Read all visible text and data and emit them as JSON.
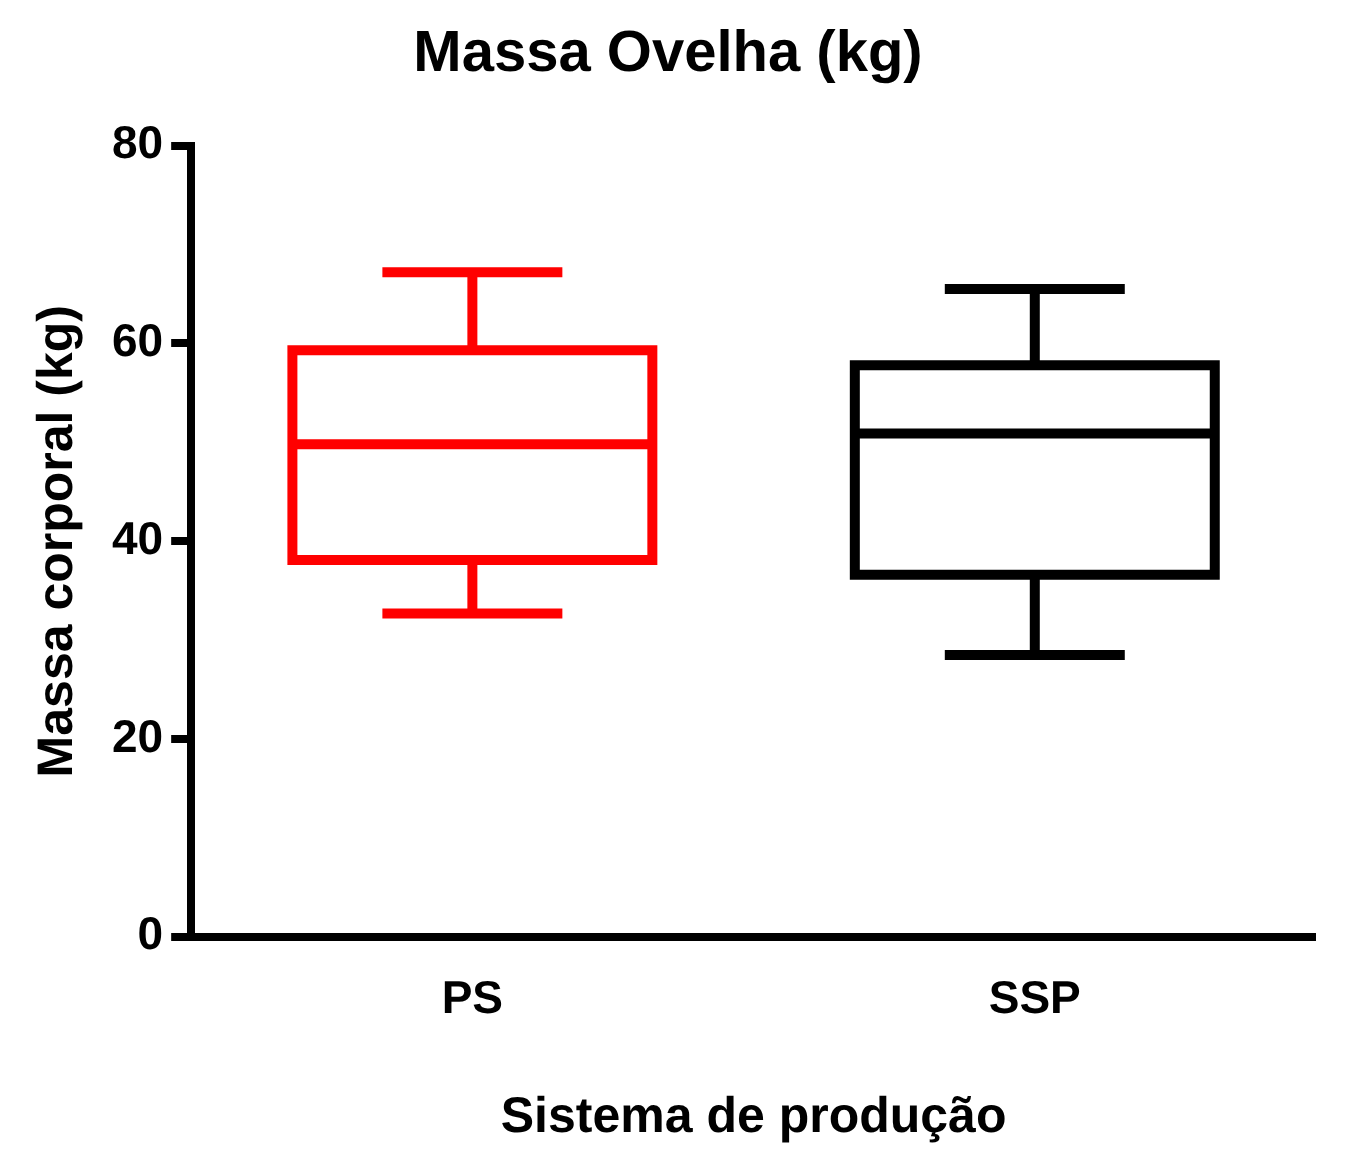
{
  "chart_data": {
    "type": "box",
    "title": "Massa Ovelha (kg)",
    "xlabel": "Sistema de produção",
    "ylabel": "Massa corporal (kg)",
    "categories": [
      "PS",
      "SSP"
    ],
    "colors": [
      "#ff0000",
      "#000000"
    ],
    "boxes": [
      {
        "low": 32.7,
        "q1": 38.1,
        "median": 49.8,
        "q3": 59.3,
        "high": 67.2
      },
      {
        "low": 28.5,
        "q1": 36.6,
        "median": 50.9,
        "q3": 57.8,
        "high": 65.5
      }
    ],
    "ylim": [
      0,
      80
    ],
    "yticks": [
      0,
      20,
      40,
      60,
      80
    ],
    "grid": false,
    "legend": false
  }
}
